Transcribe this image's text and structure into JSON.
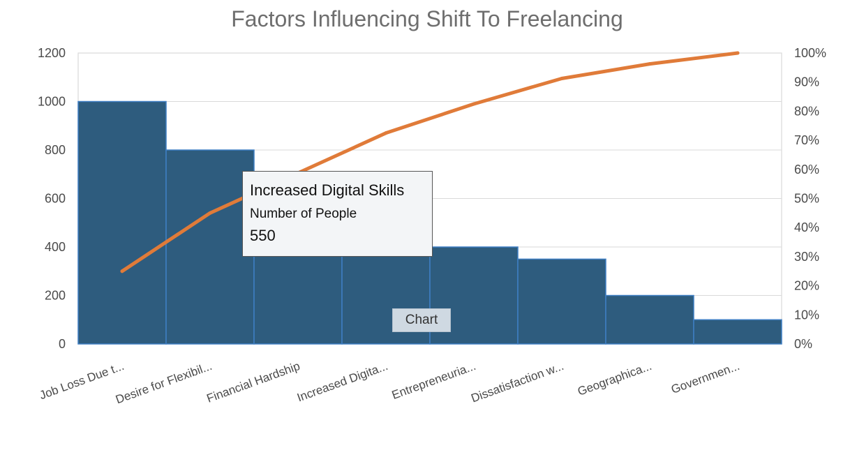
{
  "chart_data": {
    "type": "bar",
    "title": "Factors Influencing Shift To Freelancing",
    "categories": [
      "Job Loss Due t...",
      "Desire for Flexibil...",
      "Financial Hardship",
      "Increased Digita...",
      "Entrepreneuria...",
      "Dissatisfaction w...",
      "Geographica...",
      "Governmen..."
    ],
    "series": [
      {
        "name": "Number of People",
        "type": "bar",
        "values": [
          1000,
          800,
          550,
          550,
          400,
          350,
          200,
          100
        ]
      },
      {
        "name": "",
        "type": "line",
        "axis": "secondary",
        "values": [
          25.0,
          45.0,
          58.75,
          72.5,
          82.5,
          91.25,
          96.25,
          100.0
        ]
      }
    ],
    "ylim": [
      0,
      1200
    ],
    "yticks": [
      "0",
      "200",
      "400",
      "600",
      "800",
      "1000",
      "1200"
    ],
    "y2lim": [
      0,
      100
    ],
    "y2ticks": [
      "0%",
      "10%",
      "20%",
      "30%",
      "40%",
      "50%",
      "60%",
      "70%",
      "80%",
      "90%",
      "100%"
    ],
    "grid": true,
    "legend": "none",
    "colors": {
      "bar": "#2e5c7e",
      "bar_edge": "#3f7fc4",
      "line": "#e07b39",
      "grid": "#d9d9d9"
    }
  },
  "tooltip": {
    "title": "Increased Digital Skills",
    "series": "Number of People",
    "value": "550"
  },
  "button": {
    "label": "Chart"
  }
}
